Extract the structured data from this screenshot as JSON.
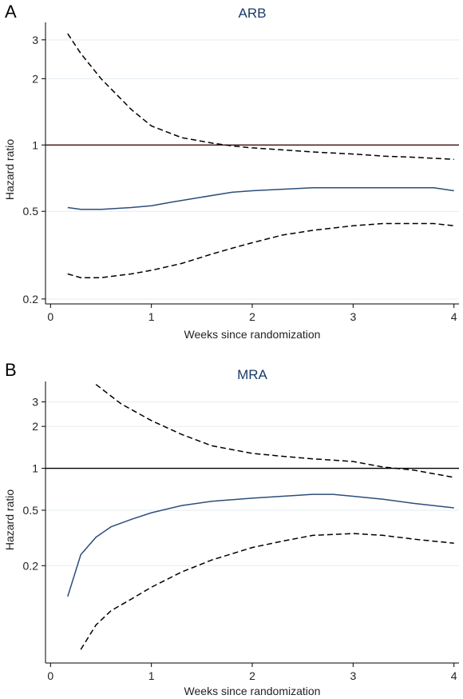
{
  "chart_data": [
    {
      "type": "line",
      "panel": "A",
      "title": "ARB",
      "xlabel": "Weeks since randomization",
      "ylabel": "Hazard ratio",
      "y_scale": "log",
      "xlim": [
        -0.05,
        4.05
      ],
      "ylim": [
        0.19,
        3.6
      ],
      "x_ticks": [
        0,
        1,
        2,
        3,
        4
      ],
      "y_ticks": [
        0.2,
        0.5,
        1,
        2,
        3
      ],
      "y_tick_labels": [
        "0.2",
        "0.5",
        "1",
        "2",
        "3"
      ],
      "reference_line": 1,
      "grid": "horizontal light",
      "series": [
        {
          "style": "solid",
          "color": "#2d4e7a",
          "x": [
            0.17,
            0.3,
            0.5,
            0.8,
            1.0,
            1.2,
            1.5,
            1.8,
            2.0,
            2.3,
            2.6,
            3.0,
            3.3,
            3.6,
            3.8,
            4.0
          ],
          "y": [
            0.52,
            0.51,
            0.51,
            0.52,
            0.53,
            0.55,
            0.58,
            0.61,
            0.62,
            0.63,
            0.64,
            0.64,
            0.64,
            0.64,
            0.64,
            0.62
          ]
        },
        {
          "style": "dashed",
          "color": "#000000",
          "x": [
            0.17,
            0.3,
            0.5,
            0.8,
            1.0,
            1.3,
            1.6,
            1.8,
            2.0,
            2.3,
            2.6,
            3.0,
            3.3,
            3.6,
            3.8,
            4.0
          ],
          "y": [
            3.2,
            2.6,
            2.0,
            1.45,
            1.22,
            1.08,
            1.02,
            0.99,
            0.97,
            0.95,
            0.93,
            0.91,
            0.89,
            0.88,
            0.87,
            0.86
          ]
        },
        {
          "style": "dashed",
          "color": "#000000",
          "x": [
            0.17,
            0.3,
            0.5,
            0.8,
            1.0,
            1.3,
            1.6,
            1.8,
            2.0,
            2.3,
            2.6,
            3.0,
            3.3,
            3.6,
            3.8,
            4.0
          ],
          "y": [
            0.26,
            0.25,
            0.25,
            0.26,
            0.27,
            0.29,
            0.32,
            0.34,
            0.36,
            0.39,
            0.41,
            0.43,
            0.44,
            0.44,
            0.44,
            0.43
          ]
        }
      ]
    },
    {
      "type": "line",
      "panel": "B",
      "title": "MRA",
      "xlabel": "Weeks since randomization",
      "ylabel": "Hazard ratio",
      "y_scale": "log",
      "xlim": [
        -0.05,
        4.05
      ],
      "ylim": [
        0.04,
        4.2
      ],
      "x_ticks": [
        0,
        1,
        2,
        3,
        4
      ],
      "y_ticks": [
        0.2,
        0.5,
        1,
        2,
        3
      ],
      "y_tick_labels": [
        "0.2",
        "0.5",
        "1",
        "2",
        "3"
      ],
      "reference_line": 1,
      "grid": "horizontal light",
      "series": [
        {
          "style": "solid",
          "color": "#2d4e7a",
          "x": [
            0.17,
            0.3,
            0.45,
            0.6,
            0.8,
            1.0,
            1.3,
            1.6,
            2.0,
            2.3,
            2.6,
            2.8,
            3.0,
            3.3,
            3.6,
            4.0
          ],
          "y": [
            0.12,
            0.24,
            0.32,
            0.38,
            0.43,
            0.48,
            0.54,
            0.58,
            0.61,
            0.63,
            0.65,
            0.65,
            0.63,
            0.6,
            0.56,
            0.52
          ]
        },
        {
          "style": "dashed",
          "color": "#000000",
          "x": [
            0.45,
            0.7,
            1.0,
            1.3,
            1.6,
            2.0,
            2.3,
            2.6,
            3.0,
            3.3,
            3.6,
            4.0
          ],
          "y": [
            4.0,
            2.9,
            2.2,
            1.75,
            1.45,
            1.28,
            1.22,
            1.17,
            1.12,
            1.02,
            0.97,
            0.86
          ]
        },
        {
          "style": "dashed",
          "color": "#000000",
          "x": [
            0.3,
            0.45,
            0.6,
            0.8,
            1.0,
            1.3,
            1.6,
            2.0,
            2.3,
            2.6,
            3.0,
            3.3,
            3.6,
            4.0
          ],
          "y": [
            0.05,
            0.075,
            0.095,
            0.115,
            0.14,
            0.18,
            0.22,
            0.27,
            0.3,
            0.33,
            0.34,
            0.33,
            0.31,
            0.29
          ]
        }
      ]
    }
  ]
}
